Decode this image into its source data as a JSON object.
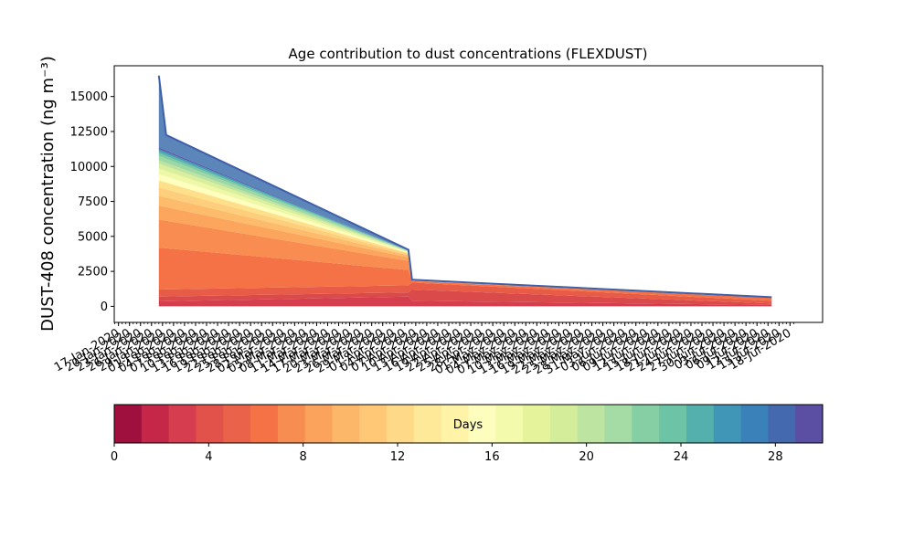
{
  "chart_data": [
    {
      "type": "area",
      "title": "Age contribution to dust concentrations (FLEXDUST)",
      "xlabel": "",
      "ylabel": "DUST-408 concentration (ng m⁻³)",
      "ylim": [
        -1150,
        17200
      ],
      "yticks": [
        0,
        2500,
        5000,
        7500,
        10000,
        12500,
        15000
      ],
      "ytick_labels": [
        "0",
        "2500",
        "5000",
        "7500",
        "10000",
        "12500",
        "15000"
      ],
      "grid": false,
      "x_date_range": [
        "2020-01-17",
        "2020-07-18"
      ],
      "x_tick_labels": [
        "17-Jan-2020",
        "20-Jan-2020",
        "23-Jan-2020",
        "26-Jan-2020",
        "29-Jan-2020",
        "01-Feb-2020",
        "04-Feb-2020",
        "07-Feb-2020",
        "10-Feb-2020",
        "13-Feb-2020",
        "16-Feb-2020",
        "19-Feb-2020",
        "22-Feb-2020",
        "25-Feb-2020",
        "28-Feb-2020",
        "02-Mar-2020",
        "05-Mar-2020",
        "08-Mar-2020",
        "11-Mar-2020",
        "14-Mar-2020",
        "17-Mar-2020",
        "20-Mar-2020",
        "23-Mar-2020",
        "26-Mar-2020",
        "29-Mar-2020",
        "01-Apr-2020",
        "04-Apr-2020",
        "07-Apr-2020",
        "10-Apr-2020",
        "13-Apr-2020",
        "16-Apr-2020",
        "19-Apr-2020",
        "22-Apr-2020",
        "25-Apr-2020",
        "28-Apr-2020",
        "01-May-2020",
        "04-May-2020",
        "07-May-2020",
        "10-May-2020",
        "13-May-2020",
        "16-May-2020",
        "19-May-2020",
        "22-May-2020",
        "25-May-2020",
        "28-May-2020",
        "31-May-2020",
        "03-Jun-2020",
        "06-Jun-2020",
        "09-Jun-2020",
        "12-Jun-2020",
        "15-Jun-2020",
        "18-Jun-2020",
        "21-Jun-2020",
        "24-Jun-2020",
        "27-Jun-2020",
        "30-Jun-2020",
        "03-Jul-2020",
        "06-Jul-2020",
        "09-Jul-2020",
        "12-Jul-2020",
        "15-Jul-2020",
        "18-Jul-2020"
      ],
      "total_series": {
        "x": [
          "2020-01-28",
          "2020-01-30",
          "2020-04-05",
          "2020-04-06",
          "2020-07-13"
        ],
        "y": [
          16500,
          12250,
          4050,
          1900,
          650
        ]
      },
      "stacked_layers": {
        "x": [
          "2020-01-28",
          "2020-04-05",
          "2020-04-06",
          "2020-07-13"
        ],
        "layers": [
          {
            "age_days": 1,
            "color": "#9e0142",
            "values": [
              0,
              0,
              0,
              0
            ]
          },
          {
            "age_days": 2,
            "color": "#d53e4f",
            "values": [
              350,
              700,
              400,
              100
            ]
          },
          {
            "age_days": 3,
            "color": "#db4a4b",
            "values": [
              350,
              300,
              800,
              100
            ]
          },
          {
            "age_days": 4,
            "color": "#e85c47",
            "values": [
              500,
              500,
              500,
              200
            ]
          },
          {
            "age_days": 5,
            "color": "#f47246",
            "values": [
              3000,
              1100,
              100,
              200
            ]
          },
          {
            "age_days": 6,
            "color": "#f88c51",
            "values": [
              2000,
              650,
              30,
              40
            ]
          },
          {
            "age_days": 7,
            "color": "#fca55d",
            "values": [
              1000,
              250,
              20,
              10
            ]
          },
          {
            "age_days": 8,
            "color": "#fdbb6c",
            "values": [
              700,
              150,
              20,
              0
            ]
          },
          {
            "age_days": 9,
            "color": "#fdce7c",
            "values": [
              600,
              100,
              10,
              0
            ]
          },
          {
            "age_days": 10,
            "color": "#fee08b",
            "values": [
              500,
              60,
              0,
              0
            ]
          },
          {
            "age_days": 11,
            "color": "#ffffbe",
            "values": [
              450,
              40,
              0,
              0
            ]
          },
          {
            "age_days": 12,
            "color": "#eff8a6",
            "values": [
              400,
              40,
              0,
              0
            ]
          },
          {
            "age_days": 13,
            "color": "#d9ef9b",
            "values": [
              350,
              30,
              0,
              0
            ]
          },
          {
            "age_days": 14,
            "color": "#bce4a0",
            "values": [
              250,
              20,
              0,
              0
            ]
          },
          {
            "age_days": 15,
            "color": "#9dd7a4",
            "values": [
              300,
              20,
              0,
              0
            ]
          },
          {
            "age_days": 16,
            "color": "#7ccba5",
            "values": [
              200,
              10,
              0,
              0
            ]
          },
          {
            "age_days": 17,
            "color": "#5bb2a9",
            "values": [
              150,
              10,
              0,
              0
            ]
          },
          {
            "age_days": 18,
            "color": "#3f96b7",
            "values": [
              150,
              10,
              0,
              0
            ]
          },
          {
            "age_days": 19,
            "color": "#5e4fa2",
            "values": [
              100,
              0,
              0,
              0
            ]
          }
        ]
      }
    },
    {
      "type": "colorbar",
      "label": "Days",
      "range": [
        0,
        30
      ],
      "ticks": [
        0,
        4,
        8,
        12,
        16,
        20,
        24,
        28
      ],
      "tick_labels": [
        "0",
        "4",
        "8",
        "12",
        "16",
        "20",
        "24",
        "28"
      ],
      "colors": [
        "#a0103f",
        "#c42747",
        "#d63e4f",
        "#e2514a",
        "#ea6249",
        "#f47246",
        "#f88d51",
        "#fba35c",
        "#fdb768",
        "#fec877",
        "#fed987",
        "#fee999",
        "#fff3a8",
        "#fdfebd",
        "#f3faac",
        "#e5f49b",
        "#d4ed9b",
        "#bde4a0",
        "#a5dba4",
        "#86cfa5",
        "#6cc3a5",
        "#53b0ac",
        "#3f96b7",
        "#3b81b9",
        "#4469af",
        "#5a4fa2"
      ]
    }
  ]
}
